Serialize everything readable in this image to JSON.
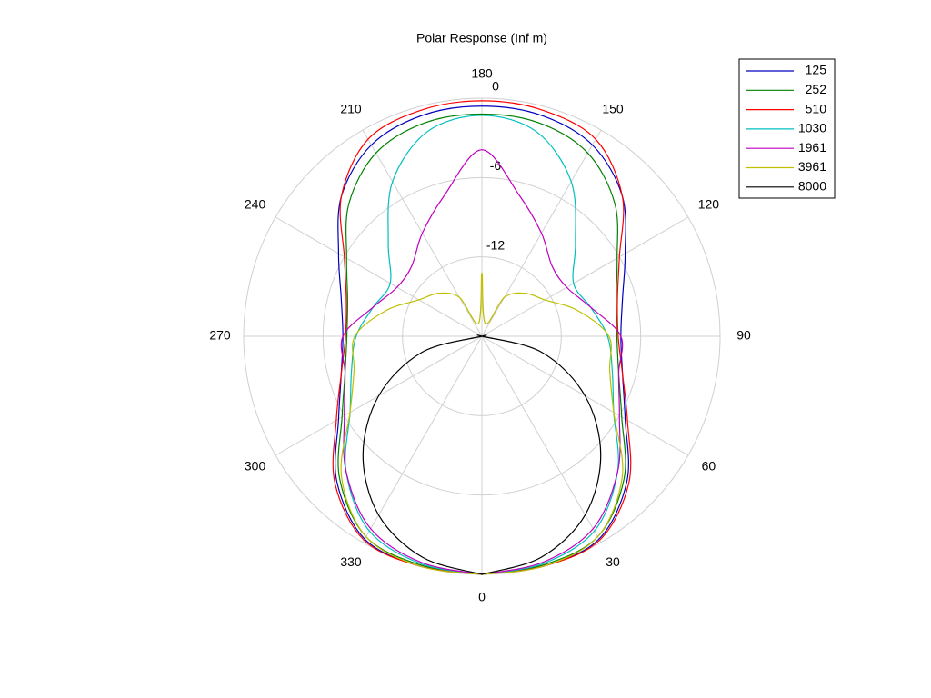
{
  "chart_data": {
    "type": "polar",
    "title": "Polar Response  (Inf m)",
    "theta_zero": "bottom",
    "theta_direction": "counterclockwise",
    "theta": [
      0,
      15,
      30,
      45,
      60,
      75,
      90,
      105,
      120,
      135,
      150,
      165,
      180,
      195,
      210,
      225,
      240,
      255,
      270,
      285,
      300,
      315,
      330,
      345,
      360
    ],
    "rlim": [
      -18,
      0
    ],
    "rticks": [
      -12,
      -6,
      0
    ],
    "thetaticks": [
      0,
      30,
      60,
      90,
      120,
      150,
      180,
      210,
      240,
      270,
      300,
      330
    ],
    "grid": true,
    "legend": "upper right",
    "series": [
      {
        "name": "125",
        "color": "#0000c0",
        "values": [
          0,
          0,
          -0.3,
          -2.5,
          -5.5,
          -7,
          -7.5,
          -7,
          -5.5,
          -3,
          -1.3,
          -0.7,
          -0.6,
          -0.7,
          -1.3,
          -3,
          -5.5,
          -7,
          -7.5,
          -7,
          -5.5,
          -2.5,
          -0.3,
          0,
          0
        ]
      },
      {
        "name": "252",
        "color": "#008000",
        "values": [
          0,
          -0.1,
          -0.5,
          -2.8,
          -5.8,
          -7.3,
          -7.8,
          -7.5,
          -6.2,
          -3.8,
          -2,
          -1.3,
          -1.2,
          -1.3,
          -2,
          -3.8,
          -6.2,
          -7.5,
          -7.8,
          -7.3,
          -5.8,
          -2.8,
          -0.5,
          -0.1,
          0
        ]
      },
      {
        "name": "510",
        "color": "#ff0000",
        "values": [
          0,
          0,
          -0.2,
          -2.3,
          -5.3,
          -7,
          -7.7,
          -7.4,
          -6,
          -3,
          -0.8,
          -0.3,
          -0.2,
          -0.3,
          -0.8,
          -3,
          -6,
          -7.4,
          -7.7,
          -7,
          -5.3,
          -2.3,
          -0.2,
          0,
          0
        ]
      },
      {
        "name": "1030",
        "color": "#00bfbf",
        "values": [
          0,
          -0.2,
          -1,
          -3.5,
          -6.5,
          -7.8,
          -8.5,
          -9.5,
          -10,
          -8,
          -4.5,
          -2,
          -1.3,
          -2,
          -4.5,
          -8,
          -10,
          -9.5,
          -8.5,
          -7.8,
          -6.5,
          -3.5,
          -1,
          -0.2,
          0
        ]
      },
      {
        "name": "1961",
        "color": "#bf00bf",
        "values": [
          0,
          -0.3,
          -1.2,
          -3.5,
          -6,
          -7.3,
          -7.5,
          -9.5,
          -10.6,
          -10.5,
          -9,
          -7,
          -3.9,
          -7,
          -9,
          -10.5,
          -10.6,
          -9.5,
          -7.5,
          -7.3,
          -6,
          -3.5,
          -1.2,
          -0.3,
          0
        ]
      },
      {
        "name": "3961",
        "color": "#bfbf00",
        "values": [
          0,
          0,
          -0.5,
          -3,
          -6.5,
          -8,
          -8.4,
          -10.5,
          -12.5,
          -13.4,
          -14.6,
          -17,
          -13.2,
          -17,
          -14.6,
          -13.4,
          -12.5,
          -10.5,
          -8.4,
          -8,
          -6.5,
          -3,
          -0.5,
          0,
          0
        ]
      },
      {
        "name": "8000",
        "color": "#000000",
        "values": [
          0,
          -0.7,
          -2.4,
          -5.3,
          -9,
          -13.3,
          -18,
          -18,
          -18,
          -18,
          -18,
          -18,
          -18,
          -18,
          -18,
          -18,
          -18,
          -18,
          -18,
          -13.3,
          -9,
          -5.3,
          -2.4,
          -0.7,
          0
        ]
      }
    ]
  }
}
